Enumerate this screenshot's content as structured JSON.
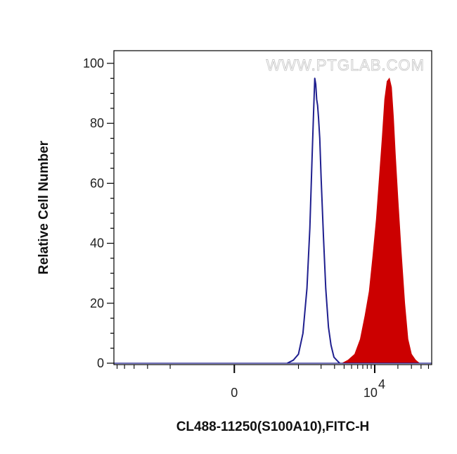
{
  "watermark": "WWW.PTGLAB.COM",
  "chart_data": {
    "type": "area",
    "xlabel": "CL488-11250(S100A10),FITC-H",
    "ylabel": "Relative Cell Number",
    "ylim": [
      0,
      100
    ],
    "y_ticks": [
      0,
      20,
      40,
      60,
      80,
      100
    ],
    "x_scale": "biexponential",
    "x_ticks": [
      {
        "label": "0",
        "value": 0
      },
      {
        "label": "10",
        "exponent": "4",
        "value": 10000
      }
    ],
    "grid": false,
    "legend": "none",
    "colors": {
      "control": "#1f1f8f",
      "sample": "#cc0000"
    },
    "series": [
      {
        "style": "line",
        "x": [
          700,
          850,
          1000,
          1150,
          1300,
          1420,
          1520,
          1600,
          1650,
          1700,
          1750,
          1800,
          1850,
          1920,
          2000,
          2150,
          2300,
          2500,
          2700,
          2950,
          3200,
          3500
        ],
        "y": [
          0,
          1,
          3,
          10,
          25,
          45,
          68,
          85,
          95,
          93,
          88,
          86,
          82,
          75,
          62,
          42,
          25,
          12,
          6,
          2,
          1,
          0
        ]
      },
      {
        "style": "filled",
        "x": [
          3800,
          4500,
          5500,
          6500,
          7500,
          8500,
          9500,
          10500,
          11500,
          12500,
          13500,
          14500,
          15500,
          16500,
          17500,
          18500,
          20000,
          22000,
          24500,
          27000,
          30000,
          34000,
          38000
        ],
        "y": [
          0,
          1,
          3,
          8,
          16,
          24,
          36,
          48,
          62,
          75,
          88,
          94,
          95,
          92,
          82,
          70,
          55,
          38,
          20,
          8,
          3,
          1,
          0
        ]
      }
    ]
  }
}
